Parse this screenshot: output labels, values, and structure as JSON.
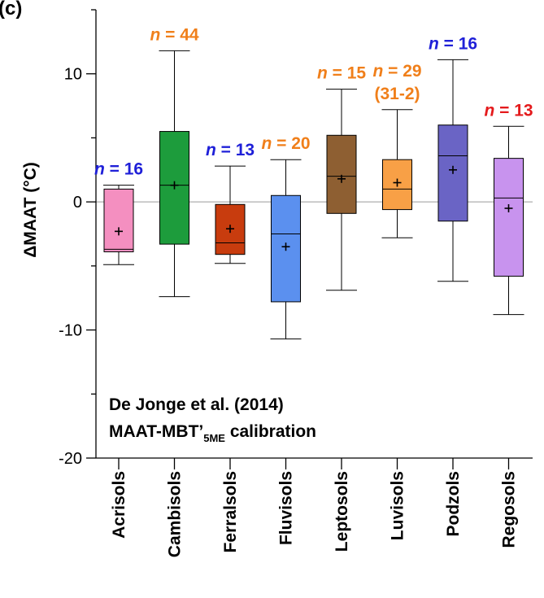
{
  "chart_data": {
    "type": "box",
    "panel_label": "(c)",
    "ylabel": "ΔMAAT (°C)",
    "ylim": [
      -20,
      15
    ],
    "yticks": [
      10,
      0,
      -10,
      -20
    ],
    "zero_line": true,
    "annotation_line1": "De Jonge et al. (2014)",
    "annotation_line2_main": "MAAT-MBT’",
    "annotation_line2_sub": "5ME",
    "annotation_line2_tail": " calibration",
    "categories": [
      {
        "name": "Acrisols",
        "color": "#f48fc0",
        "whisker_low": -4.9,
        "q1": -3.9,
        "median": -3.7,
        "q3": 1.0,
        "whisker_high": 1.3,
        "mean": -2.3,
        "n_label": "n",
        "n_value": " = 16",
        "n_color": "#1f20d8"
      },
      {
        "name": "Cambisols",
        "color": "#1d9c3c",
        "whisker_low": -7.4,
        "q1": -3.3,
        "median": 1.3,
        "q3": 5.5,
        "whisker_high": 11.8,
        "mean": 1.3,
        "n_label": "n",
        "n_value": " = 44",
        "n_color": "#f07f1a"
      },
      {
        "name": "Ferralsols",
        "color": "#c83c0e",
        "whisker_low": -4.8,
        "q1": -4.1,
        "median": -3.2,
        "q3": -0.2,
        "whisker_high": 2.8,
        "mean": -2.1,
        "n_label": "n",
        "n_value": " = 13",
        "n_color": "#1f20d8"
      },
      {
        "name": "Fluvisols",
        "color": "#5b90ef",
        "whisker_low": -10.7,
        "q1": -7.8,
        "median": -2.5,
        "q3": 0.5,
        "whisker_high": 3.3,
        "mean": -3.5,
        "n_label": "n",
        "n_value": " = 20",
        "n_color": "#f07f1a"
      },
      {
        "name": "Leptosols",
        "color": "#8e5f32",
        "whisker_low": -6.9,
        "q1": -0.9,
        "median": 2.0,
        "q3": 5.2,
        "whisker_high": 8.8,
        "mean": 1.8,
        "n_label": "n",
        "n_value": " = 15",
        "n_color": "#f07f1a"
      },
      {
        "name": "Luvisols",
        "color": "#f8a046",
        "whisker_low": -2.8,
        "q1": -0.6,
        "median": 1.0,
        "q3": 3.3,
        "whisker_high": 7.2,
        "mean": 1.5,
        "n_label": "n",
        "n_value": " = 29",
        "n_extra": "(31-2)",
        "n_color": "#f07f1a"
      },
      {
        "name": "Podzols",
        "color": "#6a64c5",
        "whisker_low": -6.2,
        "q1": -1.5,
        "median": 3.6,
        "q3": 6.0,
        "whisker_high": 11.1,
        "mean": 2.5,
        "n_label": "n",
        "n_value": " = 16",
        "n_color": "#1f20d8"
      },
      {
        "name": "Regosols",
        "color": "#c893ee",
        "whisker_low": -8.8,
        "q1": -5.8,
        "median": 0.3,
        "q3": 3.4,
        "whisker_high": 5.9,
        "mean": -0.5,
        "n_label": "n",
        "n_value": " = 13",
        "n_color": "#e41a1c"
      }
    ]
  }
}
